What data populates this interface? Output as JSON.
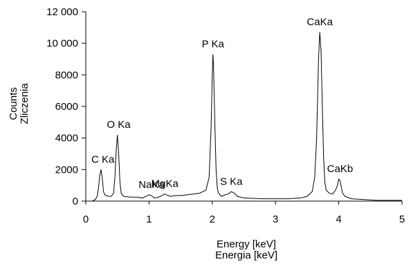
{
  "chart_data": {
    "type": "line",
    "title": "",
    "xlabel": [
      "Energy [keV]",
      "Energia [keV]"
    ],
    "ylabel": [
      "Counts",
      "Zliczenia"
    ],
    "xlim": [
      0,
      5
    ],
    "ylim": [
      0,
      12000
    ],
    "grid": false,
    "x_ticks": [
      0,
      1,
      2,
      3,
      4,
      5
    ],
    "x_tick_labels": [
      "0",
      "1",
      "2",
      "3",
      "4",
      "5"
    ],
    "y_ticks": [
      0,
      2000,
      4000,
      6000,
      8000,
      10000,
      12000
    ],
    "y_tick_labels": [
      "0",
      "2000",
      "4000",
      "6000",
      "8000",
      "10 000",
      "12 000"
    ],
    "series": [
      {
        "color": "#000000",
        "x": [
          0.0,
          0.05,
          0.1,
          0.15,
          0.18,
          0.2,
          0.22,
          0.24,
          0.26,
          0.28,
          0.3,
          0.33,
          0.36,
          0.4,
          0.44,
          0.46,
          0.48,
          0.5,
          0.52,
          0.54,
          0.56,
          0.6,
          0.7,
          0.8,
          0.9,
          1.0,
          1.04,
          1.08,
          1.15,
          1.2,
          1.25,
          1.3,
          1.35,
          1.4,
          1.5,
          1.6,
          1.7,
          1.8,
          1.9,
          1.95,
          1.98,
          2.0,
          2.01,
          2.02,
          2.04,
          2.06,
          2.08,
          2.1,
          2.15,
          2.2,
          2.25,
          2.3,
          2.35,
          2.4,
          2.5,
          2.6,
          2.8,
          3.0,
          3.2,
          3.4,
          3.5,
          3.58,
          3.62,
          3.65,
          3.68,
          3.7,
          3.72,
          3.74,
          3.76,
          3.78,
          3.8,
          3.85,
          3.9,
          3.95,
          3.98,
          4.0,
          4.02,
          4.04,
          4.06,
          4.1,
          4.2,
          4.4,
          4.6,
          4.8,
          5.0
        ],
        "y": [
          0,
          0,
          0,
          100,
          300,
          800,
          1600,
          2000,
          1500,
          600,
          400,
          350,
          300,
          300,
          500,
          1500,
          3200,
          4200,
          3000,
          1200,
          500,
          300,
          250,
          250,
          200,
          400,
          350,
          200,
          250,
          350,
          450,
          350,
          300,
          350,
          350,
          400,
          450,
          500,
          700,
          1500,
          4500,
          8000,
          9300,
          8500,
          5000,
          2000,
          800,
          500,
          300,
          400,
          450,
          600,
          500,
          300,
          200,
          180,
          150,
          150,
          150,
          200,
          300,
          600,
          1500,
          4000,
          9000,
          10700,
          9500,
          6000,
          2800,
          1200,
          700,
          500,
          450,
          700,
          1000,
          1400,
          1300,
          900,
          500,
          300,
          150,
          100,
          50,
          50,
          50
        ]
      }
    ],
    "annotations": [
      {
        "text": "C Ka",
        "x": 0.27,
        "y": 2000
      },
      {
        "text": "O Ka",
        "x": 0.52,
        "y": 4200
      },
      {
        "text": "NaKa",
        "x": 1.04,
        "y": 400
      },
      {
        "text": "MgKa",
        "x": 1.25,
        "y": 450
      },
      {
        "text": "P Ka",
        "x": 2.01,
        "y": 9300
      },
      {
        "text": "S Ka",
        "x": 2.3,
        "y": 600
      },
      {
        "text": "CaKa",
        "x": 3.7,
        "y": 10700
      },
      {
        "text": "CaKb",
        "x": 4.02,
        "y": 1400
      }
    ]
  }
}
